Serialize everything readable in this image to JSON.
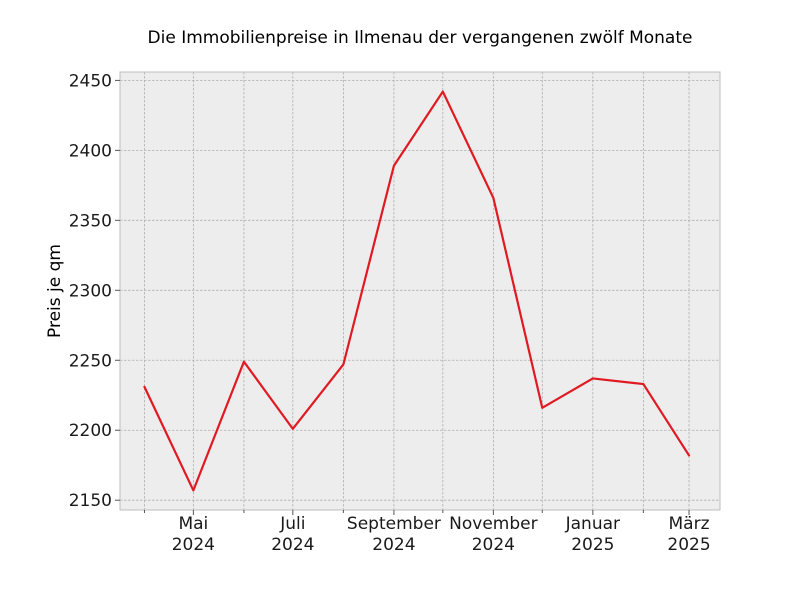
{
  "chart_data": {
    "type": "line",
    "title": "Die Immobilienpreise in Ilmenau der vergangenen zwölf Monate",
    "xlabel": "",
    "ylabel": "Preis je qm",
    "x": [
      "2024-04",
      "2024-05",
      "2024-06",
      "2024-07",
      "2024-08",
      "2024-09",
      "2024-10",
      "2024-11",
      "2024-12",
      "2025-01",
      "2025-02",
      "2025-03"
    ],
    "series": [
      {
        "values": [
          2231,
          2157,
          2249,
          2201,
          2247,
          2389,
          2442,
          2366,
          2216,
          2237,
          2233,
          2182
        ],
        "color": "#e01a22"
      }
    ],
    "x_ticks": [
      {
        "x": "2024-05",
        "month": "Mai",
        "year": "2024"
      },
      {
        "x": "2024-07",
        "month": "Juli",
        "year": "2024"
      },
      {
        "x": "2024-09",
        "month": "September",
        "year": "2024"
      },
      {
        "x": "2024-11",
        "month": "November",
        "year": "2024"
      },
      {
        "x": "2025-01",
        "month": "Januar",
        "year": "2025"
      },
      {
        "x": "2025-03",
        "month": "März",
        "year": "2025"
      }
    ],
    "minor_x_ticks": [
      "2024-04",
      "2024-06",
      "2024-08",
      "2024-10",
      "2024-12",
      "2025-02"
    ],
    "y_ticks": [
      2150,
      2200,
      2250,
      2300,
      2350,
      2400,
      2450
    ],
    "ylim": [
      2143,
      2456
    ],
    "xlim": [
      "2024-03-17",
      "2025-03-20"
    ],
    "grid": true,
    "legend": "none",
    "colors": {
      "plot_background": "#ededed",
      "grid": "#b0b0b0",
      "frame": "#bdbdbd",
      "line": "#e01a22"
    }
  }
}
